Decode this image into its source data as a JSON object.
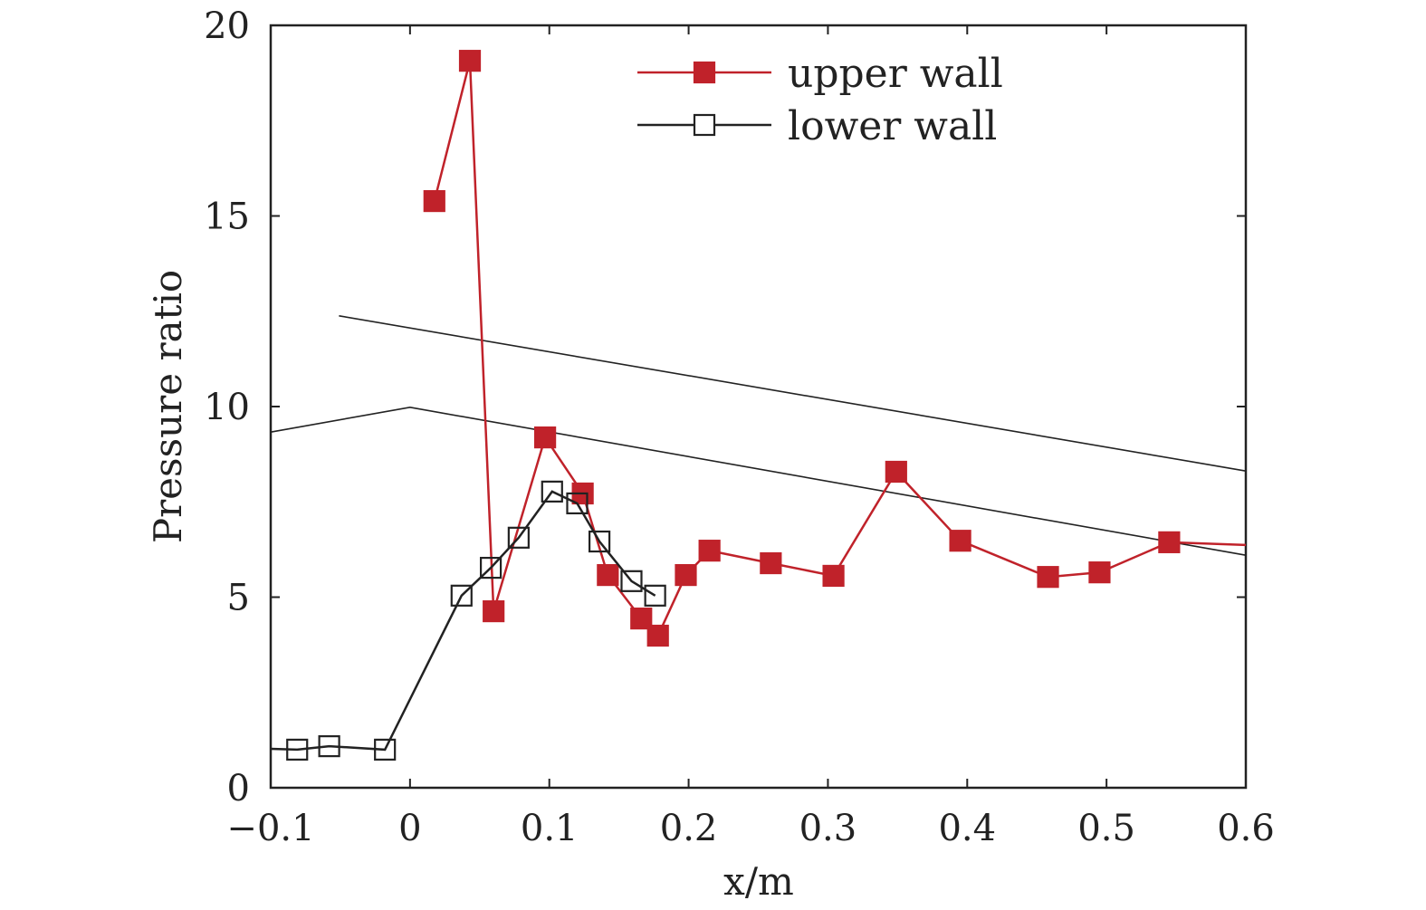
{
  "chart_data": {
    "type": "line",
    "title": "",
    "xlabel": "x/m",
    "ylabel": "Pressure ratio",
    "xlim": [
      -0.1,
      0.6
    ],
    "ylim": [
      0,
      20
    ],
    "xticks": [
      -0.1,
      0,
      0.1,
      0.2,
      0.3,
      0.4,
      0.5,
      0.6
    ],
    "xtick_labels": [
      "−0.1",
      "0",
      "0.1",
      "0.2",
      "0.3",
      "0.4",
      "0.5",
      "0.6"
    ],
    "yticks": [
      0,
      5,
      10,
      15,
      20
    ],
    "ytick_labels": [
      "0",
      "5",
      "10",
      "15",
      "20"
    ],
    "grid": false,
    "legend_position": "top-right",
    "series": [
      {
        "name": "upper wall",
        "color": "#c0222a",
        "marker": "filled-square",
        "x": [
          0.0175,
          0.043,
          0.06,
          0.097,
          0.124,
          0.142,
          0.166,
          0.178,
          0.198,
          0.215,
          0.259,
          0.304,
          0.349,
          0.395,
          0.458,
          0.495,
          0.545
        ],
        "y": [
          15.39,
          19.07,
          4.63,
          9.19,
          7.72,
          5.58,
          4.44,
          3.99,
          5.58,
          6.22,
          5.89,
          5.56,
          8.29,
          6.48,
          5.53,
          5.65,
          6.44
        ],
        "line_extension_end": [
          0.6,
          6.37
        ]
      },
      {
        "name": "lower wall",
        "color": "#222222",
        "marker": "open-square",
        "x": [
          -0.081,
          -0.058,
          -0.018,
          0.037,
          0.058,
          0.078,
          0.102,
          0.12,
          0.136,
          0.159,
          0.176
        ],
        "y": [
          1.0,
          1.09,
          1.0,
          5.04,
          5.77,
          6.56,
          7.77,
          7.46,
          6.46,
          5.42,
          5.04
        ],
        "line_extension_start": [
          -0.1,
          1.02
        ]
      }
    ],
    "annotation_lines": [
      {
        "x": [
          -0.051,
          0.6
        ],
        "y": [
          12.38,
          8.31
        ]
      },
      {
        "x": [
          -0.1,
          0,
          0.6
        ],
        "y": [
          9.33,
          9.98,
          6.1
        ]
      }
    ]
  }
}
